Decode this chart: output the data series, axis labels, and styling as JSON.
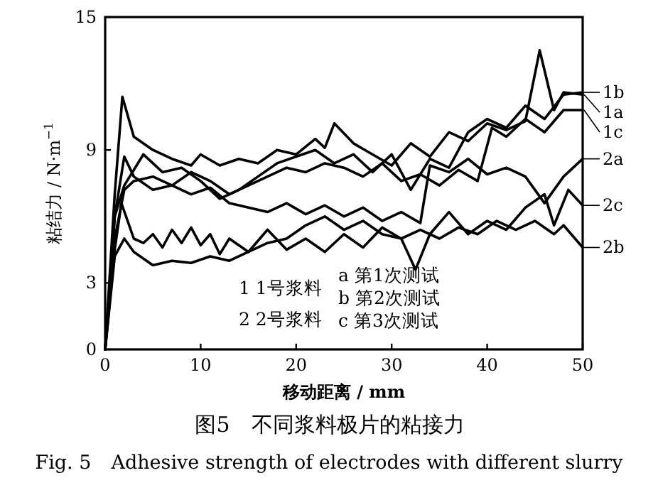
{
  "chart_data": {
    "type": "line",
    "title": "图5　不同浆料极片的粘接力",
    "subtitle": "Fig. 5　Adhesive strength of electrodes with different slurry",
    "xlabel": "移动距离 / mm",
    "ylabel": "粘结力 / N·m$^{−1}$",
    "annotations": [
      "1  1号浆料",
      "2  2号浆料",
      "a  第1次测试",
      "b  第2次测试",
      "c  第3次测试"
    ],
    "xlim": [
      0,
      50
    ],
    "ylim": [
      0,
      15
    ],
    "xticks": [
      0,
      10,
      20,
      30,
      40,
      50
    ],
    "yticks": [
      0,
      3,
      9,
      15
    ],
    "grid": false,
    "legend": "right",
    "marker": "none",
    "line_style": "solid",
    "series": [
      {
        "name": "1a",
        "color": "#000000",
        "x": [
          0,
          1,
          1.8,
          3,
          5,
          7,
          9,
          10,
          12,
          14,
          16,
          18,
          20,
          22,
          23,
          24,
          26,
          28,
          30,
          32,
          34,
          36,
          38,
          40,
          42,
          44,
          45.5,
          47,
          48,
          50
        ],
        "values": [
          0,
          7,
          11.4,
          9.6,
          9.0,
          8.6,
          8.3,
          8.8,
          8.3,
          8.6,
          8.4,
          9.0,
          8.8,
          9.5,
          9.1,
          10.2,
          9.3,
          8.8,
          8.3,
          9.3,
          8.7,
          9.8,
          9.4,
          10.2,
          9.9,
          10.3,
          13.5,
          10.8,
          11.6,
          11.5
        ]
      },
      {
        "name": "1b",
        "color": "#000000",
        "x": [
          0,
          1,
          2,
          4,
          6,
          8,
          10,
          12,
          14,
          16,
          18,
          20,
          22,
          24,
          26,
          28,
          30,
          32,
          34,
          36,
          38,
          40,
          42,
          44,
          46,
          48,
          50
        ],
        "values": [
          0,
          6,
          7.4,
          8.8,
          8.0,
          8.2,
          7.6,
          6.8,
          7.2,
          7.8,
          8.4,
          8.7,
          9.0,
          8.4,
          8.8,
          8.0,
          8.8,
          7.2,
          8.6,
          8.2,
          9.8,
          10.4,
          10.0,
          11.0,
          10.4,
          11.5,
          11.6
        ]
      },
      {
        "name": "1c",
        "color": "#000000",
        "x": [
          0,
          1,
          2,
          3,
          5,
          7,
          9,
          11,
          13,
          15,
          17,
          19,
          21,
          23,
          25,
          27,
          29,
          31,
          33,
          35,
          37,
          39,
          40.5,
          42,
          44,
          46,
          48,
          50
        ],
        "values": [
          0,
          5,
          7.2,
          7.6,
          7.8,
          7.4,
          8.0,
          7.6,
          7.0,
          7.4,
          7.8,
          8.2,
          8.0,
          8.4,
          8.2,
          7.8,
          8.4,
          7.6,
          7.9,
          7.4,
          8.1,
          7.6,
          10.0,
          9.6,
          10.4,
          9.8,
          10.8,
          10.8
        ]
      },
      {
        "name": "2a",
        "color": "#000000",
        "x": [
          0,
          1,
          2,
          3,
          5,
          7,
          9,
          11,
          13,
          15,
          17,
          19,
          21,
          23,
          25,
          27,
          29,
          31,
          33,
          34,
          36,
          38,
          40,
          42,
          44,
          46,
          48,
          50
        ],
        "values": [
          0,
          6,
          8.7,
          7.8,
          7.2,
          7.4,
          7.0,
          7.3,
          6.6,
          6.4,
          6.2,
          6.6,
          6.1,
          6.5,
          6.0,
          6.4,
          5.8,
          6.2,
          5.7,
          8.3,
          8.0,
          8.6,
          7.9,
          8.2,
          7.8,
          6.6,
          7.8,
          8.6
        ]
      },
      {
        "name": "2b",
        "color": "#000000",
        "x": [
          0,
          1,
          1.7,
          3,
          4,
          5,
          6,
          7,
          8,
          9,
          10,
          11,
          12,
          13,
          15,
          17,
          19,
          21,
          23,
          25,
          27,
          29,
          31,
          33,
          35,
          37,
          39,
          41,
          43,
          45,
          47,
          48,
          50
        ],
        "values": [
          0,
          4.5,
          6.6,
          5.0,
          4.8,
          5.2,
          4.6,
          5.4,
          4.8,
          5.5,
          4.7,
          5.2,
          4.3,
          5.0,
          4.4,
          5.4,
          4.5,
          5.0,
          4.4,
          5.2,
          4.6,
          5.5,
          5.0,
          5.4,
          5.0,
          5.5,
          5.2,
          5.8,
          5.4,
          5.8,
          5.2,
          5.6,
          4.6
        ]
      },
      {
        "name": "2c",
        "color": "#000000",
        "x": [
          0,
          1,
          2,
          3,
          5,
          7,
          9,
          11,
          13,
          15,
          17,
          19,
          21,
          23,
          25,
          27,
          29,
          31,
          32.5,
          34,
          36,
          38,
          40,
          42,
          44,
          46,
          47,
          48.5,
          50
        ],
        "values": [
          0,
          4.2,
          5.0,
          4.4,
          3.8,
          4.0,
          3.9,
          4.2,
          4.0,
          4.4,
          4.8,
          5.0,
          5.6,
          6.0,
          5.4,
          5.8,
          5.2,
          5.0,
          3.6,
          5.2,
          6.2,
          5.2,
          5.8,
          5.4,
          6.4,
          7.0,
          5.6,
          7.2,
          6.5
        ]
      }
    ]
  }
}
